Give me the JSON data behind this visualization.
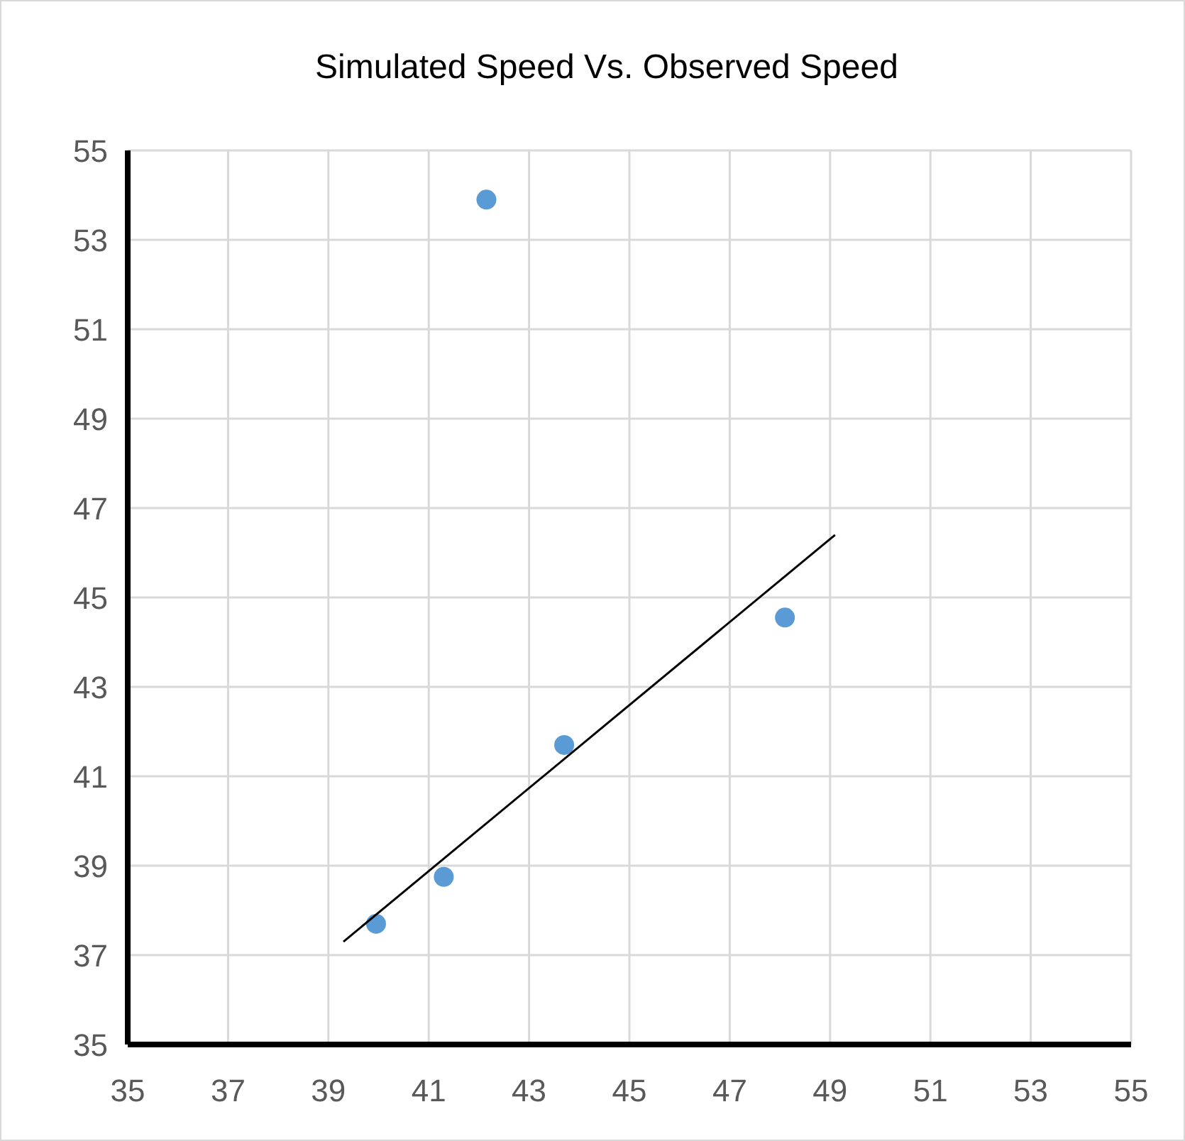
{
  "chart_data": {
    "type": "scatter",
    "title": "Simulated Speed Vs. Observed Speed",
    "xlim": [
      35,
      55
    ],
    "xticks": [
      35,
      37,
      39,
      41,
      43,
      45,
      47,
      49,
      51,
      53,
      55
    ],
    "ylim": [
      35,
      55
    ],
    "yticks": [
      35,
      37,
      39,
      41,
      43,
      45,
      47,
      49,
      51,
      53,
      55
    ],
    "grid": true,
    "series": [
      {
        "color": "#5b9bd5",
        "marker": "circle",
        "x": [
          39.95,
          41.3,
          42.15,
          43.7,
          48.1
        ],
        "values": [
          37.7,
          38.75,
          53.9,
          41.7,
          44.55
        ]
      },
      {
        "type": "line",
        "color": "#000000",
        "x": [
          39.3,
          49.1
        ],
        "values": [
          37.3,
          46.4
        ]
      }
    ]
  }
}
